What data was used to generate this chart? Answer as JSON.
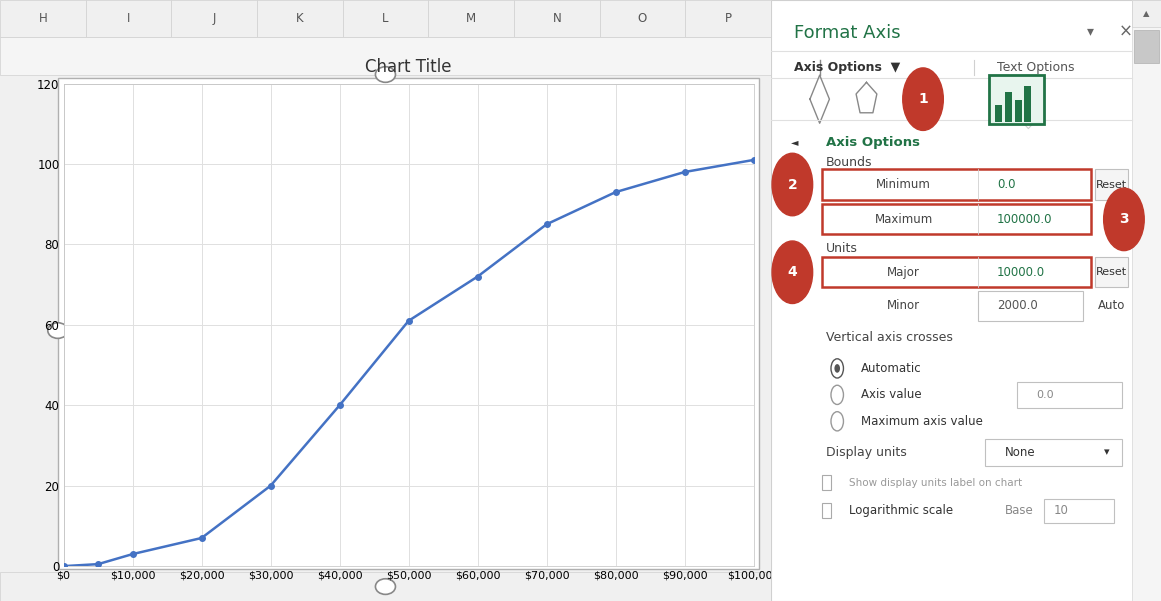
{
  "title": "Chart Title",
  "x_data": [
    0,
    5000,
    10000,
    20000,
    30000,
    40000,
    50000,
    60000,
    70000,
    80000,
    90000,
    100000
  ],
  "y_data": [
    0,
    0.5,
    3,
    7,
    20,
    40,
    61,
    72,
    85,
    93,
    98,
    101
  ],
  "line_color": "#4472C4",
  "marker_color": "#4472C4",
  "x_min": 0,
  "x_max": 100000,
  "y_min": 0,
  "y_max": 120,
  "chart_split": 0.664,
  "excel_col_headers": [
    "H",
    "I",
    "J",
    "K",
    "L",
    "M",
    "N",
    "O",
    "P"
  ],
  "teal_color": "#217346",
  "red_circle_color": "#c0392b",
  "format_axis_title": "Format Axis",
  "axis_options_label": "Axis Options",
  "text_options_label": "Text Options",
  "bounds_label": "Bounds",
  "minimum_label": "Minimum",
  "maximum_label": "Maximum",
  "units_label": "Units",
  "major_label": "Major",
  "minor_label": "Minor",
  "vac_label": "Vertical axis crosses",
  "automatic_label": "Automatic",
  "axis_value_label": "Axis value",
  "max_axis_label": "Maximum axis value",
  "display_units_label": "Display units",
  "show_display_label": "Show display units label on chart",
  "log_scale_label": "Logarithmic scale",
  "base_label": "Base",
  "min_value": "0.0",
  "max_value": "100000.0",
  "major_value": "10000.0",
  "minor_value": "2000.0",
  "axis_value_field": "0.0",
  "base_value": "10",
  "display_none": "None",
  "reset_label": "Reset",
  "auto_label": "Auto"
}
